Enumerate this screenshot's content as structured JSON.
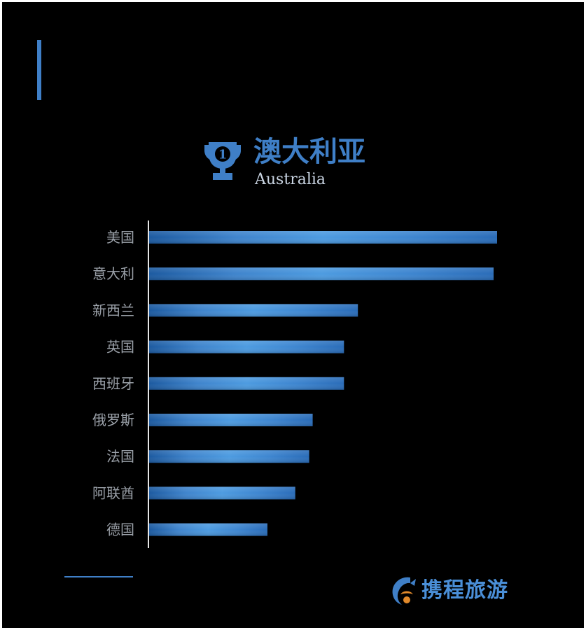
{
  "heading": {
    "title_cn": "澳大利亚",
    "title_en": "Australia",
    "rank_badge": "1"
  },
  "icons": {
    "trophy": "trophy-icon",
    "logo": "ctrip-dolphin-logo-icon"
  },
  "logo": {
    "text": "携程旅游"
  },
  "colors": {
    "background": "#000000",
    "accent": "#3f7fc7",
    "bar_dark": "#1f5ea6",
    "bar_light": "#4a95dc",
    "label": "#9aa0a8",
    "axis": "#e6e6e6"
  },
  "chart_data": {
    "type": "bar",
    "orientation": "horizontal",
    "categories": [
      "美国",
      "意大利",
      "新西兰",
      "英国",
      "西班牙",
      "俄罗斯",
      "法国",
      "阿联酋",
      "德国"
    ],
    "values": [
      100,
      99,
      60,
      56,
      56,
      47,
      46,
      42,
      34
    ],
    "xlim": [
      0,
      100
    ],
    "grid": false,
    "legend": "none"
  }
}
